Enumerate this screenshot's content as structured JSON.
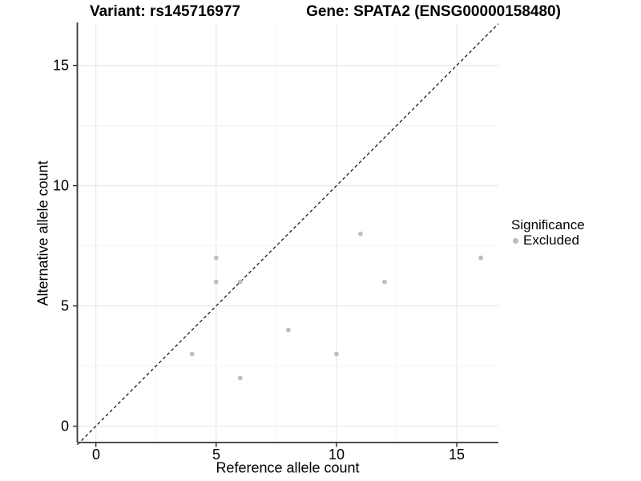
{
  "titles": {
    "left": "Variant: rs145716977",
    "right": "Gene: SPATA2 (ENSG00000158480)"
  },
  "chart_data": {
    "type": "scatter",
    "xlabel": "Reference allele count",
    "ylabel": "Alternative allele count",
    "xlim": [
      -0.77,
      16.73
    ],
    "ylim": [
      -0.68,
      16.72
    ],
    "x_ticks": [
      0,
      5,
      10,
      15
    ],
    "y_ticks": [
      0,
      5,
      10,
      15
    ],
    "x_tick_labels": [
      "0",
      "5",
      "10",
      "15"
    ],
    "y_tick_labels": [
      "0",
      "5",
      "10",
      "15"
    ],
    "x_minor_gridlines": [
      2.5,
      7.5,
      12.5
    ],
    "y_minor_gridlines": [
      2.5,
      7.5,
      12.5
    ],
    "grid": true,
    "reference_line": {
      "type": "identity-y-equals-x",
      "style": "dashed",
      "color": "#1a1a1a"
    },
    "series": [
      {
        "name": "Excluded",
        "color": "#bebebe",
        "points": [
          [
            4,
            3
          ],
          [
            5,
            6
          ],
          [
            5,
            7
          ],
          [
            6,
            2
          ],
          [
            6,
            6
          ],
          [
            8,
            4
          ],
          [
            10,
            3
          ],
          [
            11,
            8
          ],
          [
            12,
            6
          ],
          [
            16,
            7
          ]
        ]
      }
    ],
    "legend": {
      "title": "Significance",
      "position": "right",
      "entries": [
        {
          "label": "Excluded",
          "color": "#bebebe"
        }
      ]
    }
  },
  "colors": {
    "point": "#bebebe",
    "grid_major": "#e9e9e9",
    "grid_minor": "#f3f3f3",
    "axis": "#333333",
    "dashed_line": "#1a1a1a",
    "background": "#ffffff"
  }
}
